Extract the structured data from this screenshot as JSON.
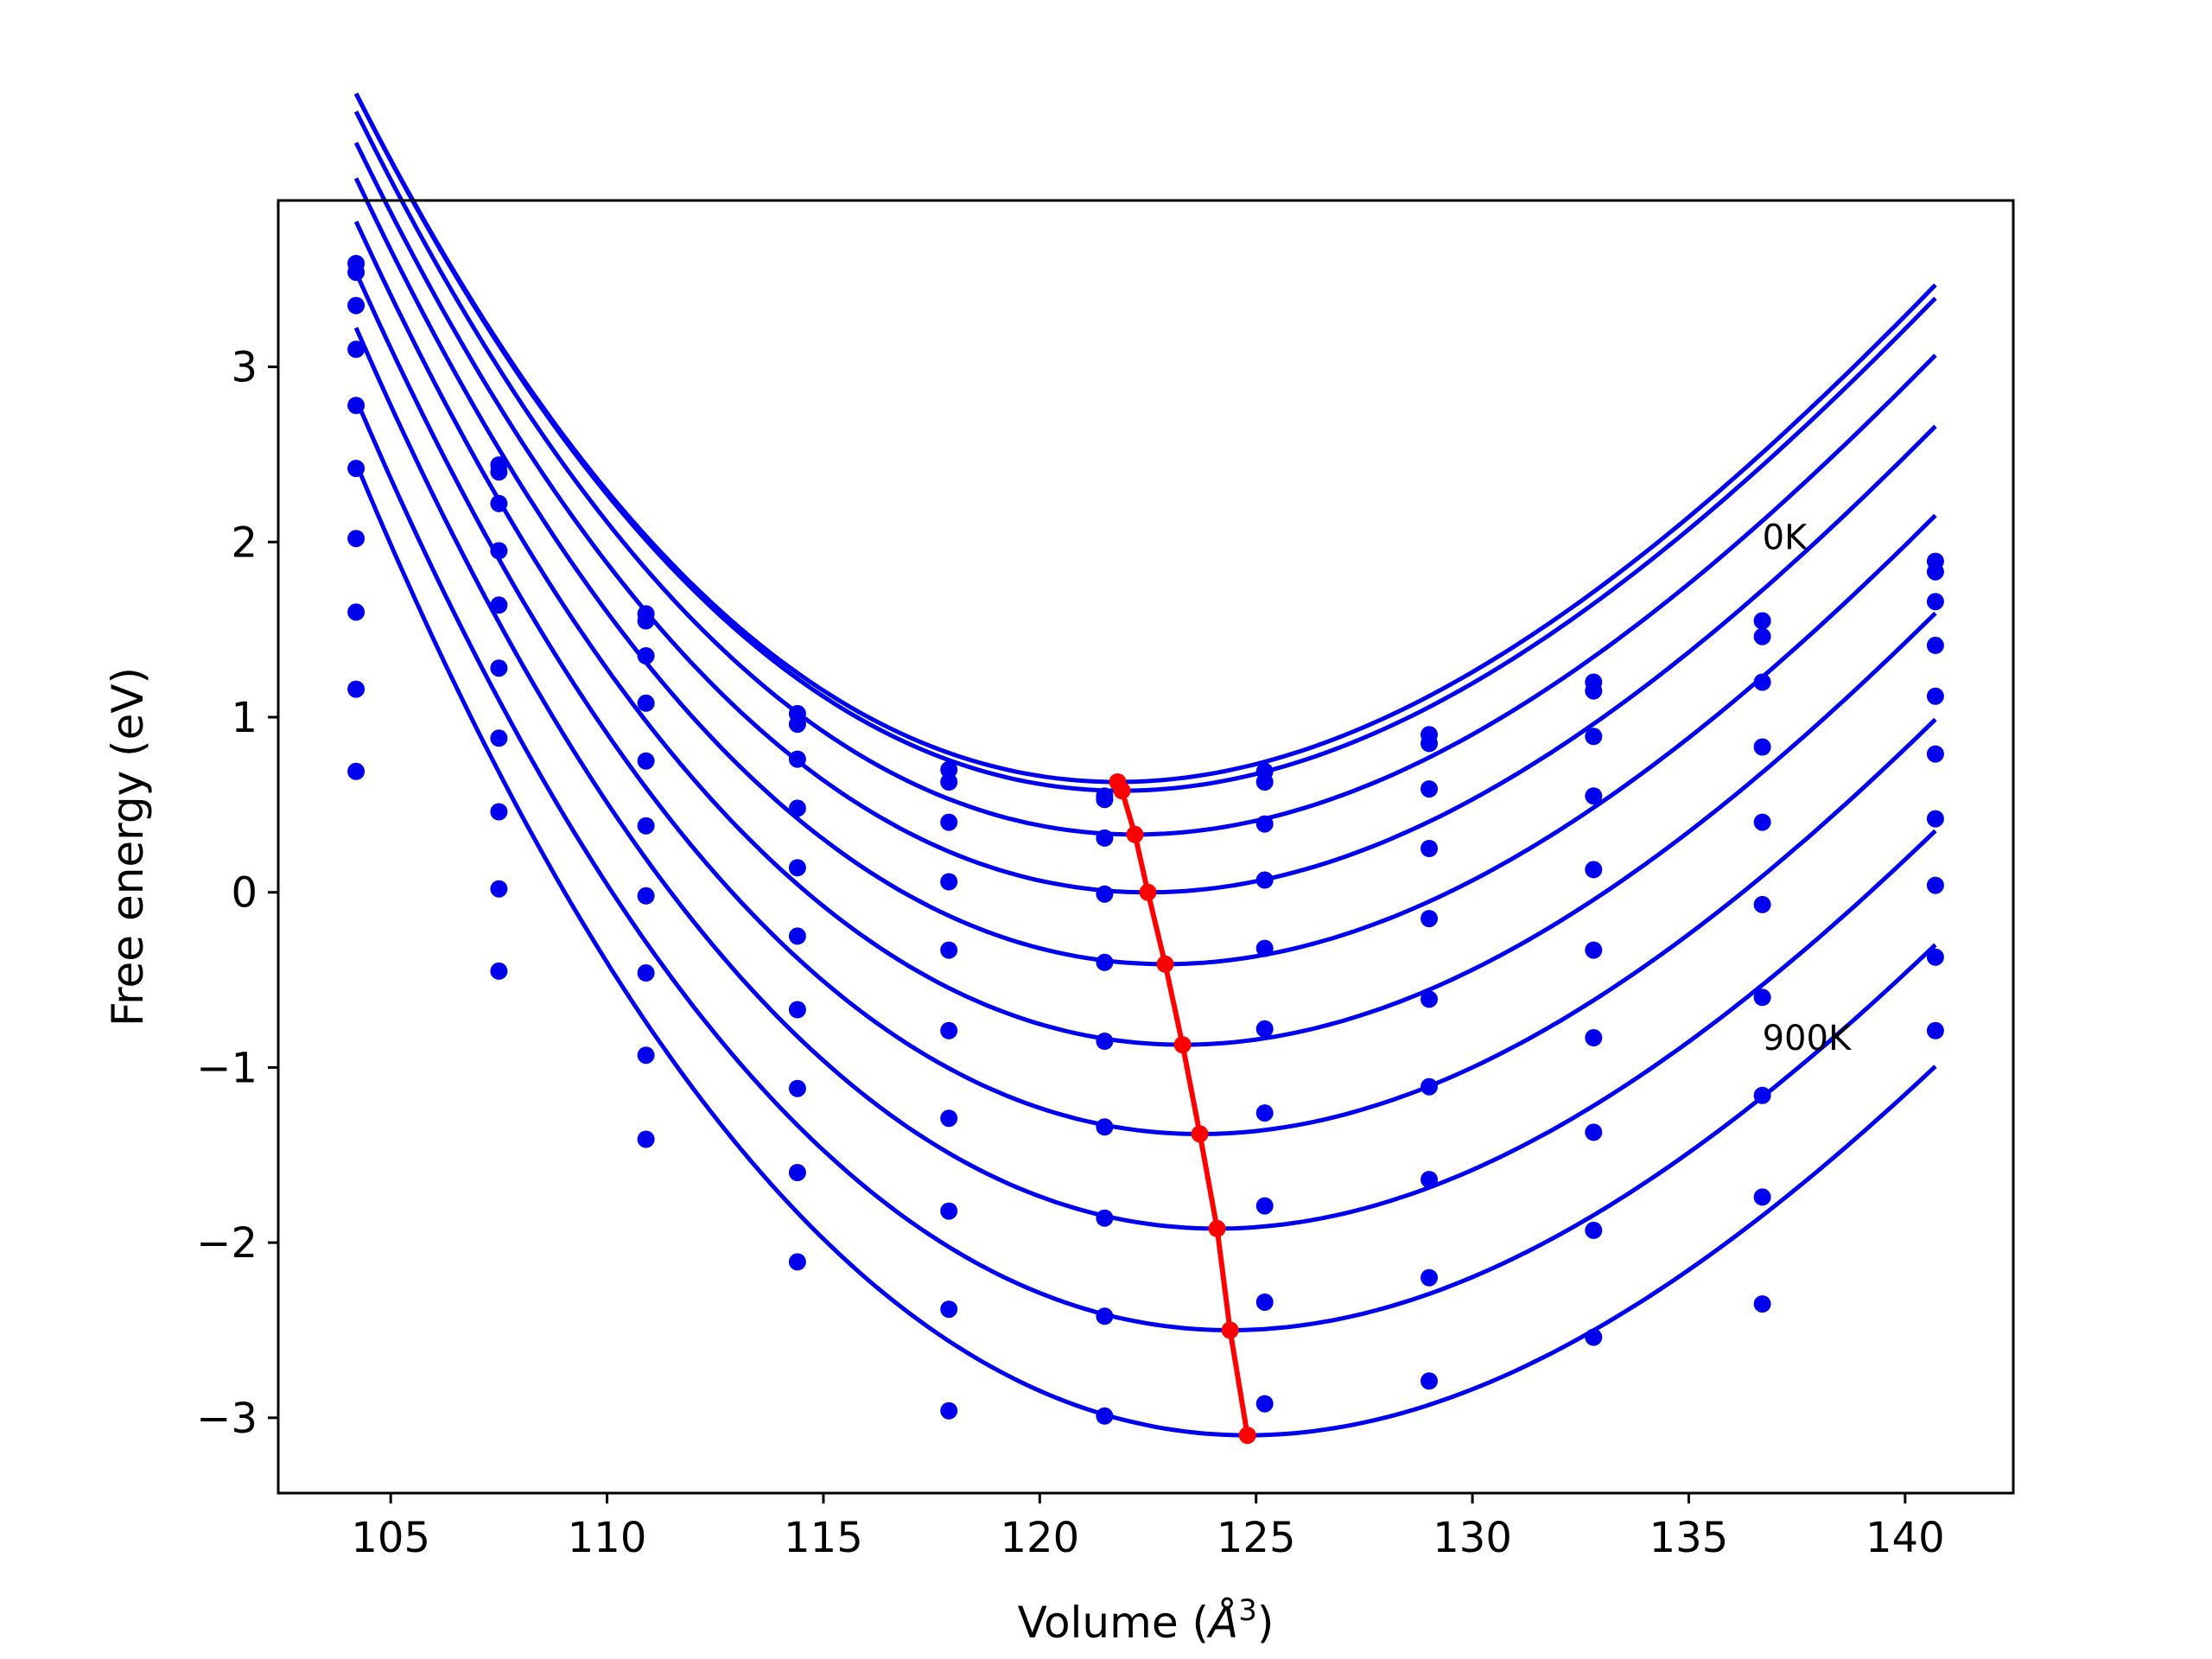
{
  "chart_data": {
    "type": "line",
    "title": "",
    "xlabel_main": "Volume (",
    "xlabel_unit": "Å",
    "xlabel_exp": "3",
    "xlabel_close": ")",
    "ylabel": "Free energy (eV)",
    "xlim": [
      102.4,
      142.5
    ],
    "ylim": [
      -3.43,
      3.95
    ],
    "xticks": [
      105,
      110,
      115,
      120,
      125,
      130,
      135,
      140
    ],
    "yticks": [
      -3,
      -2,
      -1,
      0,
      1,
      2,
      3
    ],
    "grid": false,
    "legend": "none",
    "annotations": [
      {
        "text": "0K",
        "x": 136.7,
        "y": 1.96
      },
      {
        "text": "900K",
        "x": 136.7,
        "y": -0.9
      }
    ],
    "volumes": [
      104.2,
      107.5,
      110.9,
      114.4,
      117.9,
      121.5,
      125.2,
      129.0,
      132.8,
      136.7,
      140.7
    ],
    "colors": {
      "fit": "#0000ee",
      "points": "#0000ee",
      "minima": "#ff0000"
    },
    "series": [
      {
        "fit": {
          "vmin": 121.8,
          "fmin": 0.63,
          "a": 0.0104,
          "b": -0.00013
        },
        "points": [
          3.59,
          2.44,
          1.59,
          1.02,
          0.7,
          0.55,
          0.69,
          0.9,
          1.2,
          1.55,
          1.89
        ]
      },
      {
        "fit": {
          "vmin": 121.9,
          "fmin": 0.58,
          "a": 0.0104,
          "b": -0.00013
        },
        "points": [
          3.54,
          2.4,
          1.55,
          0.96,
          0.63,
          0.53,
          0.63,
          0.85,
          1.15,
          1.46,
          1.83
        ]
      },
      {
        "fit": {
          "vmin": 122.2,
          "fmin": 0.33,
          "a": 0.0104,
          "b": -0.00013
        },
        "points": [
          3.35,
          2.22,
          1.35,
          0.76,
          0.4,
          0.31,
          0.39,
          0.59,
          0.89,
          1.2,
          1.66
        ]
      },
      {
        "fit": {
          "vmin": 122.5,
          "fmin": 0.0,
          "a": 0.0104,
          "b": -0.00013
        },
        "points": [
          3.1,
          1.95,
          1.08,
          0.48,
          0.06,
          -0.01,
          0.07,
          0.25,
          0.55,
          0.83,
          1.41
        ]
      },
      {
        "fit": {
          "vmin": 122.9,
          "fmin": -0.41,
          "a": 0.0104,
          "b": -0.00013
        },
        "points": [
          2.78,
          1.64,
          0.75,
          0.14,
          -0.33,
          -0.4,
          -0.32,
          -0.15,
          0.13,
          0.4,
          1.12
        ]
      },
      {
        "fit": {
          "vmin": 123.3,
          "fmin": -0.87,
          "a": 0.0104,
          "b": -0.00013
        },
        "points": [
          2.42,
          1.28,
          0.38,
          -0.25,
          -0.79,
          -0.85,
          -0.78,
          -0.61,
          -0.33,
          -0.07,
          0.79
        ]
      },
      {
        "fit": {
          "vmin": 123.7,
          "fmin": -1.38,
          "a": 0.0104,
          "b": -0.00013
        },
        "points": [
          2.02,
          0.88,
          -0.02,
          -0.67,
          -1.29,
          -1.34,
          -1.26,
          -1.11,
          -0.83,
          -0.6,
          0.42
        ]
      },
      {
        "fit": {
          "vmin": 124.1,
          "fmin": -1.92,
          "a": 0.0104,
          "b": -0.00013
        },
        "points": [
          1.6,
          0.46,
          -0.46,
          -1.12,
          -1.82,
          -1.86,
          -1.79,
          -1.64,
          -1.37,
          -1.16,
          0.04
        ]
      },
      {
        "fit": {
          "vmin": 124.4,
          "fmin": -2.5,
          "a": 0.0104,
          "b": -0.00013
        },
        "points": [
          1.16,
          0.02,
          -0.93,
          -1.6,
          -2.38,
          -2.42,
          -2.34,
          -2.2,
          -1.93,
          -1.74,
          -0.37
        ]
      },
      {
        "fit": {
          "vmin": 124.8,
          "fmin": -3.1,
          "a": 0.0104,
          "b": -0.00013
        },
        "points": [
          0.69,
          -0.45,
          -1.41,
          -2.11,
          -2.96,
          -2.99,
          -2.92,
          -2.79,
          -2.54,
          -2.35,
          -0.79
        ]
      }
    ]
  }
}
